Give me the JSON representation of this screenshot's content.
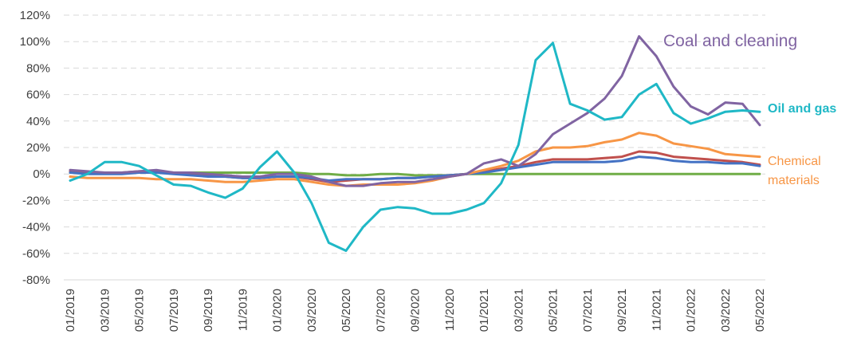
{
  "chart_data": {
    "type": "line",
    "title": "",
    "xlabel": "",
    "ylabel": "",
    "ylim": [
      -80,
      120
    ],
    "ytick_step": 20,
    "y_format": "percent",
    "grid": true,
    "x": [
      "01/2019",
      "02/2019",
      "03/2019",
      "04/2019",
      "05/2019",
      "06/2019",
      "07/2019",
      "08/2019",
      "09/2019",
      "10/2019",
      "11/2019",
      "12/2019",
      "01/2020",
      "02/2020",
      "03/2020",
      "04/2020",
      "05/2020",
      "06/2020",
      "07/2020",
      "08/2020",
      "09/2020",
      "10/2020",
      "11/2020",
      "12/2020",
      "01/2021",
      "02/2021",
      "03/2021",
      "04/2021",
      "05/2021",
      "06/2021",
      "07/2021",
      "08/2021",
      "09/2021",
      "10/2021",
      "11/2021",
      "12/2021",
      "01/2022",
      "02/2022",
      "03/2022",
      "04/2022",
      "05/2022"
    ],
    "x_tick_labels": [
      "01/2019",
      "03/2019",
      "05/2019",
      "07/2019",
      "09/2019",
      "11/2019",
      "01/2020",
      "03/2020",
      "05/2020",
      "07/2020",
      "09/2020",
      "11/2020",
      "01/2021",
      "03/2021",
      "05/2021",
      "07/2021",
      "09/2021",
      "11/2021",
      "01/2022",
      "03/2022",
      "05/2022"
    ],
    "series": [
      {
        "name": "",
        "color": "#70ad47",
        "values": [
          1,
          1,
          1,
          1,
          1,
          1,
          1,
          1,
          1,
          1,
          1,
          1,
          1,
          1,
          0,
          0,
          -1,
          -1,
          0,
          0,
          -1,
          -1,
          -1,
          0,
          0,
          0,
          0,
          0,
          0,
          0,
          0,
          0,
          0,
          0,
          0,
          0,
          0,
          0,
          0,
          0,
          0
        ]
      },
      {
        "name": "",
        "color": "#c0504d",
        "values": [
          2,
          1,
          1,
          1,
          2,
          2,
          1,
          0,
          -1,
          -2,
          -3,
          -3,
          -2,
          -2,
          -4,
          -6,
          -5,
          -4,
          -4,
          -3,
          -3,
          -2,
          -1,
          0,
          2,
          4,
          6,
          9,
          11,
          11,
          11,
          12,
          13,
          17,
          16,
          13,
          12,
          11,
          10,
          9,
          7
        ]
      },
      {
        "name": "",
        "color": "#4472c4",
        "values": [
          1,
          0,
          0,
          0,
          1,
          1,
          0,
          -1,
          -2,
          -2,
          -3,
          -3,
          -2,
          -2,
          -3,
          -5,
          -4,
          -4,
          -4,
          -3,
          -3,
          -2,
          -1,
          0,
          1,
          3,
          5,
          7,
          9,
          9,
          9,
          9,
          10,
          13,
          12,
          10,
          9,
          9,
          8,
          8,
          6
        ]
      },
      {
        "name": "Chemical materials",
        "color": "#f79646",
        "values": [
          -2,
          -3,
          -3,
          -3,
          -3,
          -4,
          -4,
          -4,
          -5,
          -6,
          -6,
          -5,
          -4,
          -4,
          -6,
          -8,
          -9,
          -8,
          -8,
          -8,
          -7,
          -5,
          -2,
          0,
          3,
          6,
          10,
          17,
          20,
          20,
          21,
          24,
          26,
          31,
          29,
          23,
          21,
          19,
          15,
          14,
          13
        ]
      },
      {
        "name": "Coal and cleaning",
        "color": "#8064a2",
        "values": [
          3,
          2,
          1,
          1,
          2,
          3,
          1,
          1,
          0,
          -1,
          -2,
          -2,
          0,
          0,
          -2,
          -6,
          -9,
          -9,
          -7,
          -6,
          -6,
          -4,
          -2,
          0,
          8,
          11,
          6,
          15,
          30,
          38,
          46,
          57,
          74,
          104,
          89,
          66,
          51,
          45,
          54,
          53,
          37
        ]
      },
      {
        "name": "Oil and gas",
        "color": "#1fb8c6",
        "values": [
          -5,
          0,
          9,
          9,
          6,
          -1,
          -8,
          -9,
          -14,
          -18,
          -11,
          5,
          17,
          1,
          -22,
          -52,
          -58,
          -40,
          -27,
          -25,
          -26,
          -30,
          -30,
          -27,
          -22,
          -7,
          22,
          86,
          99,
          53,
          48,
          41,
          43,
          60,
          68,
          46,
          38,
          42,
          47,
          48,
          47
        ]
      }
    ],
    "annotations": [
      {
        "text": "Coal and cleaning",
        "color": "#8064a2"
      },
      {
        "text": "Oil and gas",
        "color": "#1fb8c6"
      },
      {
        "text_lines": [
          "Chemical",
          "materials"
        ],
        "color": "#f79646"
      }
    ]
  }
}
